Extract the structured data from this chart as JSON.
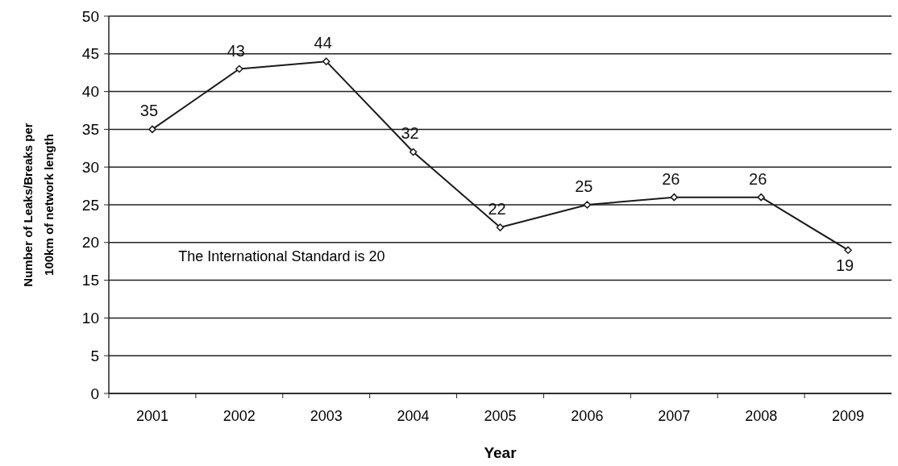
{
  "chart_data": {
    "type": "line",
    "xlabel": "Year",
    "ylabel": "Number of Leaks/Breaks per 100km of network length",
    "categories": [
      "2001",
      "2002",
      "2003",
      "2004",
      "2005",
      "2006",
      "2007",
      "2008",
      "2009"
    ],
    "series": [
      {
        "color": "#1a1a1a",
        "values": [
          35,
          43,
          44,
          32,
          22,
          25,
          26,
          26,
          19
        ]
      }
    ],
    "ylim": [
      0,
      50
    ],
    "yticks": [
      0,
      5,
      10,
      15,
      20,
      25,
      30,
      35,
      40,
      45,
      50
    ],
    "grid": "y",
    "marker": "diamond",
    "line_style": "solid",
    "data_labels": true,
    "annotations": [
      "The International Standard is 20"
    ]
  }
}
